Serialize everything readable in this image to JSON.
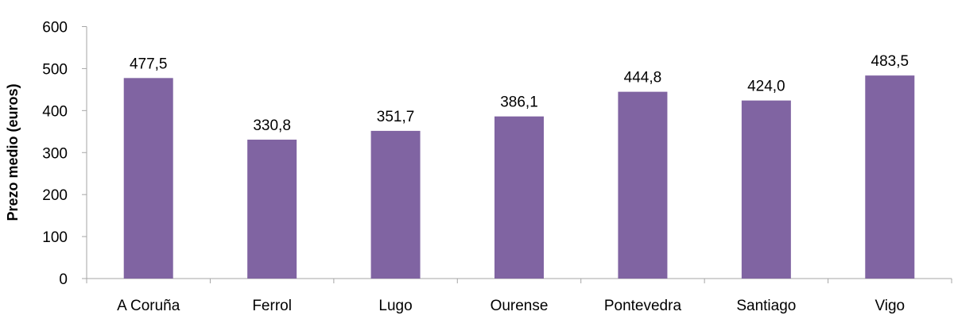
{
  "chart_data": {
    "type": "bar",
    "title": "",
    "xlabel": "",
    "ylabel": "Prezo medio (euros)",
    "categories": [
      "A Coruña",
      "Ferrol",
      "Lugo",
      "Ourense",
      "Pontevedra",
      "Santiago",
      "Vigo"
    ],
    "values": [
      477.5,
      330.8,
      351.7,
      386.1,
      444.8,
      424.0,
      483.5
    ],
    "data_labels": [
      "477,5",
      "330,8",
      "351,7",
      "386,1",
      "444,8",
      "424,0",
      "483,5"
    ],
    "ylim": [
      0,
      600
    ],
    "yticks": [
      0,
      100,
      200,
      300,
      400,
      500,
      600
    ],
    "grid": false,
    "legend": "none",
    "bar_color": "#8064A2",
    "axis_color": "#A6A6A6"
  }
}
